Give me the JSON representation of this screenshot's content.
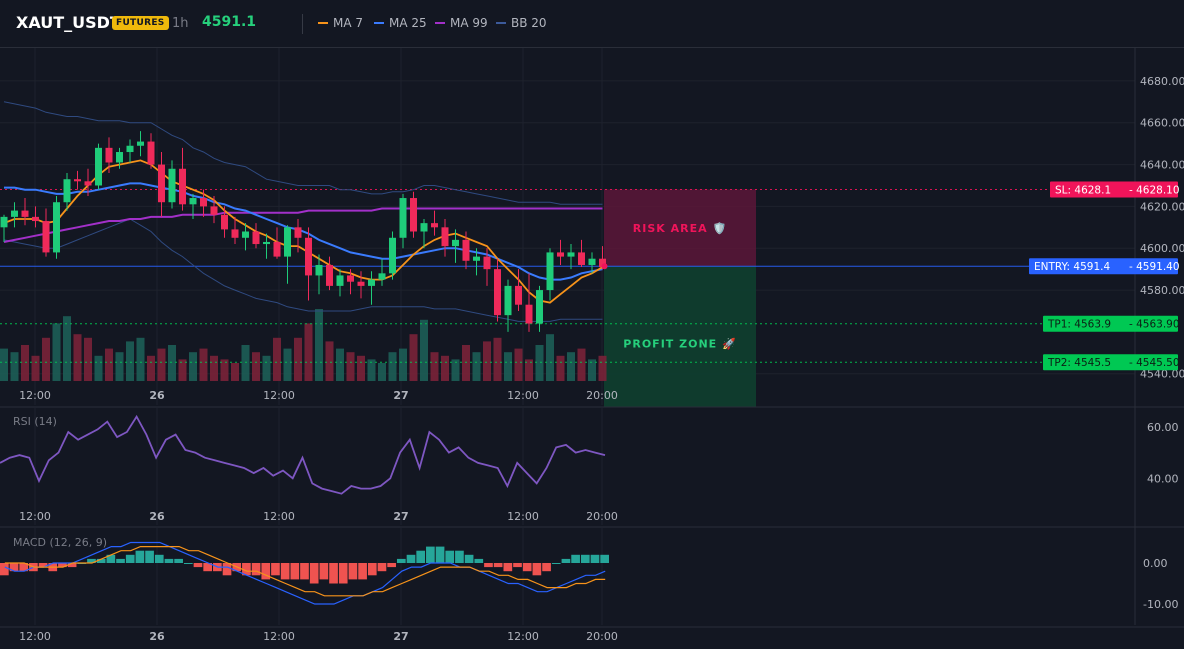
{
  "header": {
    "symbol": "XAUT_USDT",
    "badge": "FUTURES",
    "timeframe": "1h",
    "price": "4591.1",
    "legend": [
      {
        "name": "MA 7",
        "color": "#f7931a"
      },
      {
        "name": "MA 25",
        "color": "#3a7bfd"
      },
      {
        "name": "MA 99",
        "color": "#a230c9"
      },
      {
        "name": "BB 20",
        "color": "#3c5a9a"
      }
    ]
  },
  "colors": {
    "up": "#26a69a",
    "down": "#ef2a5a",
    "sl": "#f0145a",
    "entry": "#2962ff",
    "tp": "#00c853",
    "rsi": "#7e57c2"
  },
  "price_axis": {
    "ticks": [
      "4680.00",
      "4660.00",
      "4640.00",
      "4620.00",
      "4600.00",
      "4580.00",
      "4540.00"
    ],
    "ylim": [
      4537,
      4690
    ]
  },
  "time_axis": {
    "ticks": [
      "12:00",
      "26",
      "12:00",
      "27",
      "12:00",
      "20:00"
    ]
  },
  "levels": [
    {
      "key": "sl",
      "price": 4628.1,
      "label": "SL: 4628.1",
      "value": "4628.10"
    },
    {
      "key": "entry",
      "price": 4591.4,
      "label": "ENTRY: 4591.4",
      "value": "4591.40"
    },
    {
      "key": "tp1",
      "price": 4563.9,
      "label": "TP1: 4563.9",
      "value": "4563.90"
    },
    {
      "key": "tp2",
      "price": 4545.5,
      "label": "TP2: 4545.5",
      "value": "4545.50"
    }
  ],
  "zones": {
    "risk_label": "RISK AREA 🛡️",
    "profit_label": "PROFIT ZONE 🚀"
  },
  "rsi": {
    "title": "RSI (14)",
    "ticks": [
      "60.00",
      "40.00"
    ],
    "ylim": [
      30,
      65
    ],
    "values": [
      46,
      48,
      49,
      48,
      39,
      47,
      50,
      58,
      55,
      57,
      59,
      62,
      56,
      58,
      64,
      57,
      48,
      55,
      57,
      51,
      50,
      48,
      47,
      46,
      45,
      44,
      42,
      44,
      41,
      43,
      40,
      48,
      38,
      36,
      35,
      34,
      37,
      36,
      36,
      37,
      40,
      50,
      55,
      44,
      58,
      55,
      50,
      52,
      48,
      46,
      45,
      44,
      37,
      46,
      42,
      38,
      44,
      52,
      53,
      50,
      51,
      50,
      49
    ]
  },
  "macd": {
    "title": "MACD (12, 26, 9)",
    "ticks": [
      "0.00",
      "-10.00"
    ],
    "ylim": [
      -14,
      7
    ],
    "hist": [
      -3,
      -2,
      -2,
      -2,
      -1,
      -2,
      -1,
      -1,
      0,
      1,
      1,
      2,
      1,
      2,
      3,
      3,
      2,
      1,
      1,
      0,
      -1,
      -2,
      -2,
      -3,
      -2,
      -3,
      -3,
      -4,
      -3,
      -4,
      -4,
      -4,
      -5,
      -4,
      -5,
      -5,
      -4,
      -4,
      -3,
      -2,
      -1,
      1,
      2,
      3,
      4,
      4,
      3,
      3,
      2,
      1,
      -1,
      -1,
      -2,
      -1,
      -2,
      -3,
      -2,
      0,
      1,
      2,
      2,
      2,
      2
    ],
    "line": [
      -1,
      -2,
      -2,
      -1,
      -1,
      0,
      0,
      0,
      1,
      2,
      3,
      4,
      4,
      5,
      5,
      5,
      5,
      4,
      3,
      2,
      1,
      0,
      -1,
      -1,
      -2,
      -3,
      -4,
      -5,
      -6,
      -7,
      -8,
      -9,
      -10,
      -10,
      -10,
      -9,
      -8,
      -8,
      -7,
      -6,
      -4,
      -2,
      -1,
      -1,
      0,
      0,
      0,
      -1,
      -1,
      -2,
      -3,
      -4,
      -5,
      -5,
      -6,
      -7,
      -7,
      -6,
      -5,
      -4,
      -3,
      -3,
      -2
    ],
    "signal": [
      0,
      0,
      0,
      -1,
      -1,
      -1,
      -1,
      0,
      0,
      0,
      1,
      2,
      3,
      3,
      4,
      4,
      4,
      4,
      4,
      3,
      3,
      2,
      1,
      0,
      -1,
      -2,
      -2,
      -3,
      -4,
      -5,
      -6,
      -7,
      -7,
      -8,
      -8,
      -8,
      -8,
      -8,
      -7,
      -7,
      -6,
      -5,
      -4,
      -3,
      -2,
      -1,
      -1,
      -1,
      -1,
      -2,
      -2,
      -3,
      -3,
      -4,
      -4,
      -5,
      -6,
      -6,
      -6,
      -5,
      -5,
      -4,
      -4
    ]
  },
  "chart_data": {
    "type": "candlestick",
    "symbol": "XAUT_USDT",
    "ylim": [
      4537,
      4690
    ],
    "candles": [
      [
        4610,
        4616,
        4603,
        4615
      ],
      [
        4615,
        4622,
        4610,
        4618
      ],
      [
        4618,
        4624,
        4611,
        4615
      ],
      [
        4615,
        4620,
        4610,
        4613
      ],
      [
        4613,
        4619,
        4596,
        4598
      ],
      [
        4598,
        4625,
        4595,
        4622
      ],
      [
        4622,
        4636,
        4618,
        4633
      ],
      [
        4633,
        4637,
        4628,
        4632
      ],
      [
        4632,
        4638,
        4625,
        4630
      ],
      [
        4630,
        4650,
        4628,
        4648
      ],
      [
        4648,
        4653,
        4636,
        4641
      ],
      [
        4641,
        4648,
        4638,
        4646
      ],
      [
        4646,
        4652,
        4641,
        4649
      ],
      [
        4649,
        4656,
        4644,
        4651
      ],
      [
        4651,
        4655,
        4638,
        4640
      ],
      [
        4640,
        4646,
        4615,
        4622
      ],
      [
        4622,
        4642,
        4619,
        4638
      ],
      [
        4638,
        4648,
        4618,
        4621
      ],
      [
        4621,
        4626,
        4614,
        4624
      ],
      [
        4624,
        4628,
        4615,
        4620
      ],
      [
        4620,
        4625,
        4612,
        4616
      ],
      [
        4616,
        4620,
        4605,
        4609
      ],
      [
        4609,
        4615,
        4602,
        4605
      ],
      [
        4605,
        4612,
        4599,
        4608
      ],
      [
        4608,
        4612,
        4600,
        4602
      ],
      [
        4602,
        4607,
        4595,
        4603
      ],
      [
        4603,
        4610,
        4595,
        4596
      ],
      [
        4596,
        4611,
        4583,
        4610
      ],
      [
        4610,
        4614,
        4598,
        4605
      ],
      [
        4605,
        4610,
        4575,
        4587
      ],
      [
        4587,
        4597,
        4578,
        4592
      ],
      [
        4592,
        4596,
        4580,
        4582
      ],
      [
        4582,
        4590,
        4577,
        4587
      ],
      [
        4587,
        4590,
        4578,
        4584
      ],
      [
        4584,
        4589,
        4576,
        4582
      ],
      [
        4582,
        4589,
        4573,
        4585
      ],
      [
        4585,
        4595,
        4582,
        4588
      ],
      [
        4588,
        4608,
        4585,
        4605
      ],
      [
        4605,
        4626,
        4600,
        4624
      ],
      [
        4624,
        4627,
        4605,
        4608
      ],
      [
        4608,
        4614,
        4600,
        4612
      ],
      [
        4612,
        4618,
        4606,
        4610
      ],
      [
        4610,
        4614,
        4596,
        4601
      ],
      [
        4601,
        4609,
        4593,
        4604
      ],
      [
        4604,
        4608,
        4590,
        4594
      ],
      [
        4594,
        4600,
        4587,
        4596
      ],
      [
        4596,
        4600,
        4582,
        4590
      ],
      [
        4590,
        4595,
        4565,
        4568
      ],
      [
        4568,
        4585,
        4560,
        4582
      ],
      [
        4582,
        4590,
        4570,
        4573
      ],
      [
        4573,
        4588,
        4560,
        4564
      ],
      [
        4564,
        4582,
        4560,
        4580
      ],
      [
        4580,
        4600,
        4575,
        4598
      ],
      [
        4598,
        4604,
        4592,
        4596
      ],
      [
        4596,
        4602,
        4590,
        4598
      ],
      [
        4598,
        4604,
        4591,
        4592
      ],
      [
        4592,
        4598,
        4588,
        4595
      ],
      [
        4595,
        4601,
        4590,
        4591
      ]
    ],
    "volume": [
      9,
      8,
      10,
      7,
      12,
      16,
      18,
      13,
      12,
      7,
      9,
      8,
      11,
      12,
      7,
      9,
      10,
      6,
      8,
      9,
      7,
      6,
      5,
      10,
      8,
      7,
      12,
      9,
      12,
      16,
      20,
      11,
      9,
      8,
      7,
      6,
      5,
      8,
      9,
      13,
      17,
      8,
      7,
      6,
      10,
      8,
      11,
      12,
      8,
      9,
      6,
      10,
      13,
      7,
      8,
      9,
      6,
      7
    ],
    "ma7": [
      4612,
      4614,
      4614,
      4614,
      4612,
      4613,
      4619,
      4625,
      4630,
      4635,
      4639,
      4640,
      4641,
      4642,
      4640,
      4636,
      4632,
      4630,
      4628,
      4626,
      4623,
      4618,
      4614,
      4611,
      4608,
      4606,
      4603,
      4601,
      4601,
      4598,
      4595,
      4592,
      4589,
      4588,
      4586,
      4585,
      4585,
      4587,
      4592,
      4597,
      4601,
      4604,
      4606,
      4607,
      4605,
      4603,
      4601,
      4595,
      4590,
      4585,
      4579,
      4575,
      4574,
      4578,
      4582,
      4586,
      4588,
      4591
    ],
    "ma25": [
      4629,
      4629,
      4628,
      4628,
      4627,
      4626,
      4626,
      4627,
      4627,
      4628,
      4629,
      4630,
      4631,
      4631,
      4630,
      4629,
      4628,
      4627,
      4625,
      4624,
      4622,
      4621,
      4619,
      4618,
      4616,
      4614,
      4612,
      4610,
      4609,
      4607,
      4604,
      4602,
      4600,
      4598,
      4597,
      4596,
      4595,
      4595,
      4596,
      4597,
      4598,
      4599,
      4600,
      4600,
      4599,
      4598,
      4597,
      4595,
      4593,
      4591,
      4588,
      4586,
      4585,
      4585,
      4586,
      4588,
      4589,
      4590
    ],
    "ma99": [
      4603,
      4604,
      4605,
      4606,
      4607,
      4608,
      4609,
      4610,
      4611,
      4612,
      4613,
      4613,
      4614,
      4614,
      4615,
      4615,
      4615,
      4616,
      4616,
      4616,
      4616,
      4617,
      4617,
      4617,
      4617,
      4617,
      4617,
      4617,
      4617,
      4618,
      4618,
      4618,
      4618,
      4618,
      4618,
      4618,
      4619,
      4619,
      4619,
      4619,
      4619,
      4619,
      4619,
      4619,
      4619,
      4619,
      4619,
      4619,
      4619,
      4619,
      4619,
      4619,
      4619,
      4619,
      4619,
      4619,
      4619,
      4619
    ],
    "bb_upper": [
      4670,
      4669,
      4668,
      4667,
      4665,
      4664,
      4663,
      4663,
      4662,
      4661,
      4661,
      4661,
      4660,
      4660,
      4660,
      4657,
      4654,
      4652,
      4648,
      4646,
      4643,
      4641,
      4640,
      4639,
      4636,
      4633,
      4632,
      4631,
      4630,
      4630,
      4630,
      4630,
      4628,
      4628,
      4627,
      4626,
      4626,
      4627,
      4627,
      4628,
      4630,
      4630,
      4629,
      4628,
      4627,
      4626,
      4625,
      4624,
      4623,
      4622,
      4622,
      4622,
      4622,
      4621,
      4621,
      4621,
      4621,
      4621
    ],
    "bb_lower": [
      4604,
      4603,
      4602,
      4601,
      4600,
      4600,
      4602,
      4604,
      4606,
      4608,
      4610,
      4612,
      4614,
      4611,
      4608,
      4603,
      4599,
      4596,
      4592,
      4588,
      4585,
      4582,
      4580,
      4578,
      4576,
      4575,
      4574,
      4572,
      4571,
      4570,
      4570,
      4570,
      4570,
      4570,
      4571,
      4572,
      4572,
      4572,
      4572,
      4572,
      4572,
      4571,
      4571,
      4571,
      4570,
      4569,
      4568,
      4567,
      4566,
      4565,
      4565,
      4565,
      4565,
      4566,
      4566,
      4566,
      4566,
      4566
    ]
  }
}
